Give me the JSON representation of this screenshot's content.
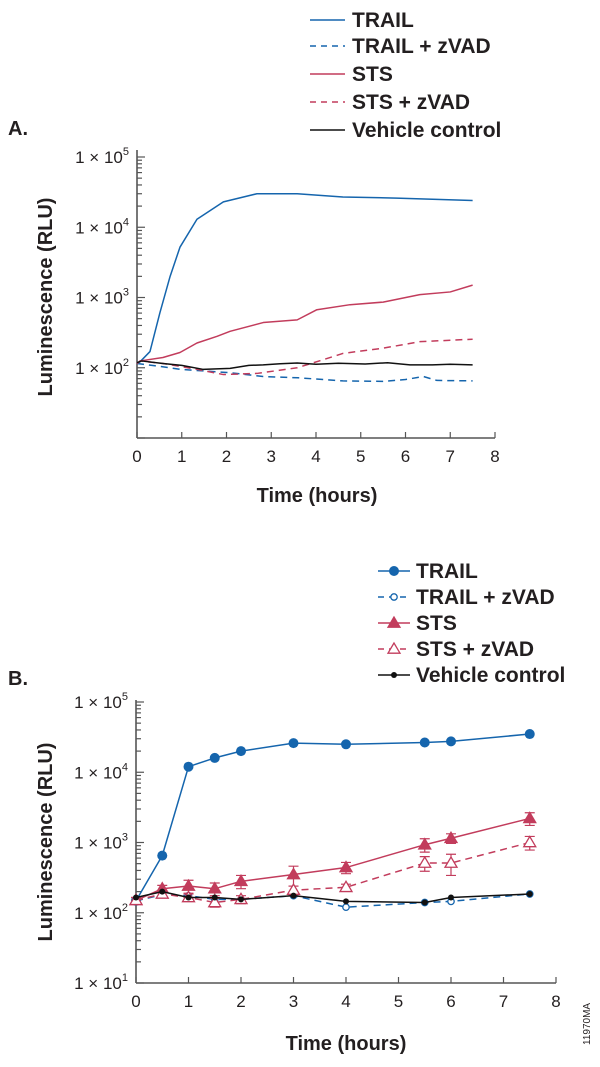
{
  "colors": {
    "trail": "#1565ad",
    "sts": "#c23c5c",
    "vehicle": "#111111",
    "axis": "#555555"
  },
  "figure_code": "11970MA",
  "chart_data": [
    {
      "panel_label": "A.",
      "type": "line",
      "xlabel": "Time (hours)",
      "ylabel": "Luminescence (RLU)",
      "xlim": [
        0,
        8
      ],
      "ylim": [
        10,
        100000
      ],
      "yscale": "log",
      "xticks": [
        "0",
        "1",
        "2",
        "3",
        "4",
        "5",
        "6",
        "7",
        "8"
      ],
      "yticks": [
        {
          "value": 100000,
          "base": "1 × 10",
          "exp": "5"
        },
        {
          "value": 10000,
          "base": "1 × 10",
          "exp": "4"
        },
        {
          "value": 1000,
          "base": "1 × 10",
          "exp": "3"
        },
        {
          "value": 100,
          "base": "1 × 10",
          "exp": "2"
        }
      ],
      "legend_position": "top-right",
      "series": [
        {
          "name": "TRAIL",
          "color": "#1565ad",
          "dash": false,
          "x": [
            0,
            0.07,
            0.29,
            0.51,
            0.74,
            0.96,
            1.34,
            1.93,
            2.68,
            3.58,
            4.6,
            5.8,
            7.5
          ],
          "y": [
            115,
            122,
            170,
            600,
            2000,
            5200,
            13000,
            23000,
            30000,
            30000,
            27000,
            26000,
            24000
          ]
        },
        {
          "name": "TRAIL + zVAD",
          "color": "#1565ad",
          "dash": true,
          "x": [
            0,
            0.5,
            0.96,
            1.5,
            2.08,
            2.82,
            3.6,
            4.6,
            5.5,
            6.0,
            6.4,
            6.7,
            7.5
          ],
          "y": [
            115,
            105,
            95,
            90,
            85,
            75,
            72,
            65,
            64,
            68,
            75,
            66,
            65
          ]
        },
        {
          "name": "STS",
          "color": "#c23c5c",
          "dash": false,
          "x": [
            0,
            0.07,
            0.58,
            0.96,
            1.34,
            1.79,
            2.08,
            2.82,
            3.58,
            4.02,
            4.76,
            5.5,
            6.32,
            7.0,
            7.5
          ],
          "y": [
            115,
            125,
            140,
            165,
            225,
            280,
            330,
            440,
            480,
            670,
            790,
            860,
            1100,
            1200,
            1500
          ]
        },
        {
          "name": "STS + zVAD",
          "color": "#c23c5c",
          "dash": true,
          "x": [
            0,
            0.07,
            0.58,
            1.34,
            1.93,
            2.68,
            3.58,
            4.16,
            4.6,
            5.5,
            6.32,
            7.5
          ],
          "y": [
            115,
            125,
            115,
            95,
            80,
            83,
            100,
            130,
            160,
            190,
            235,
            255
          ]
        },
        {
          "name": "Vehicle control",
          "color": "#111111",
          "dash": false,
          "x": [
            0,
            0.1,
            0.58,
            1.0,
            1.47,
            2.08,
            2.5,
            2.82,
            3.2,
            3.58,
            4.0,
            4.5,
            5.1,
            5.6,
            6.1,
            6.6,
            7.0,
            7.5
          ],
          "y": [
            118,
            125,
            115,
            108,
            95,
            98,
            108,
            110,
            114,
            117,
            112,
            116,
            113,
            118,
            110,
            110,
            112,
            110
          ]
        }
      ]
    },
    {
      "panel_label": "B.",
      "type": "line",
      "xlabel": "Time (hours)",
      "ylabel": "Luminescence (RLU)",
      "xlim": [
        0,
        8
      ],
      "ylim": [
        10,
        100000
      ],
      "yscale": "log",
      "xticks": [
        "0",
        "1",
        "2",
        "3",
        "4",
        "5",
        "6",
        "7",
        "8"
      ],
      "yticks": [
        {
          "value": 100000,
          "base": "1 × 10",
          "exp": "5"
        },
        {
          "value": 10000,
          "base": "1 × 10",
          "exp": "4"
        },
        {
          "value": 1000,
          "base": "1 × 10",
          "exp": "3"
        },
        {
          "value": 100,
          "base": "1 × 10",
          "exp": "2"
        },
        {
          "value": 10,
          "base": "1 × 10",
          "exp": "1"
        }
      ],
      "legend_position": "top-right",
      "series": [
        {
          "name": "TRAIL",
          "color": "#1565ad",
          "dash": false,
          "marker": "filled-circle",
          "x": [
            0,
            0.5,
            1,
            1.5,
            2,
            3,
            4,
            5.5,
            6,
            7.5
          ],
          "y": [
            148,
            650,
            12000,
            16000,
            20000,
            26000,
            25000,
            26500,
            27500,
            35000
          ]
        },
        {
          "name": "TRAIL + zVAD",
          "color": "#1565ad",
          "dash": true,
          "marker": "open-circle",
          "x": [
            0,
            0.5,
            1,
            1.5,
            2,
            3,
            4,
            5.5,
            6,
            7.5
          ],
          "y": [
            148,
            180,
            175,
            155,
            155,
            175,
            120,
            140,
            145,
            185
          ]
        },
        {
          "name": "STS",
          "color": "#c23c5c",
          "dash": false,
          "marker": "filled-triangle",
          "x": [
            0,
            0.5,
            1,
            1.5,
            2,
            3,
            4,
            5.5,
            6,
            7.5
          ],
          "y": [
            150,
            220,
            240,
            220,
            280,
            350,
            440,
            930,
            1150,
            2200
          ],
          "yerr": [
            15,
            25,
            50,
            45,
            60,
            110,
            80,
            200,
            180,
            450
          ]
        },
        {
          "name": "STS + zVAD",
          "color": "#c23c5c",
          "dash": true,
          "marker": "open-triangle",
          "x": [
            0,
            0.5,
            1,
            1.5,
            2,
            3,
            4,
            5.5,
            6,
            7.5
          ],
          "y": [
            150,
            185,
            165,
            140,
            155,
            210,
            230,
            510,
            510,
            1000
          ],
          "yerr": [
            15,
            20,
            20,
            20,
            20,
            30,
            25,
            120,
            170,
            220
          ]
        },
        {
          "name": "Vehicle control",
          "color": "#111111",
          "dash": false,
          "marker": "small-filled-circle",
          "x": [
            0,
            0.5,
            1,
            1.5,
            2,
            3,
            4,
            5.5,
            6,
            7.5
          ],
          "y": [
            165,
            200,
            165,
            165,
            155,
            175,
            145,
            140,
            165,
            185
          ]
        }
      ]
    }
  ]
}
